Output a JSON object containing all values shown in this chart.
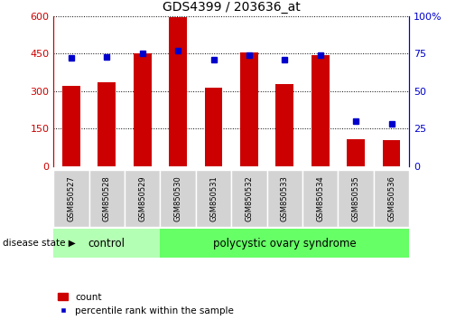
{
  "title": "GDS4399 / 203636_at",
  "samples": [
    "GSM850527",
    "GSM850528",
    "GSM850529",
    "GSM850530",
    "GSM850531",
    "GSM850532",
    "GSM850533",
    "GSM850534",
    "GSM850535",
    "GSM850536"
  ],
  "counts": [
    320,
    335,
    450,
    595,
    315,
    455,
    330,
    445,
    110,
    105
  ],
  "percentiles": [
    72,
    73,
    75,
    77,
    71,
    74,
    71,
    74,
    30,
    28
  ],
  "left_ylim": [
    0,
    600
  ],
  "left_yticks": [
    0,
    150,
    300,
    450,
    600
  ],
  "right_ylim": [
    0,
    100
  ],
  "right_yticks": [
    0,
    25,
    50,
    75,
    100
  ],
  "right_yticklabels": [
    "0",
    "25",
    "50",
    "75",
    "100%"
  ],
  "bar_color": "#cc0000",
  "dot_color": "#0000cc",
  "control_label": "control",
  "disease_label": "polycystic ovary syndrome",
  "disease_state_label": "disease state",
  "n_control": 3,
  "control_bg": "#b3ffb3",
  "disease_bg": "#66ff66",
  "sample_bg": "#d3d3d3",
  "legend_count": "count",
  "legend_percentile": "percentile rank within the sample",
  "bar_width": 0.5,
  "figsize": [
    5.15,
    3.54
  ],
  "dpi": 100
}
